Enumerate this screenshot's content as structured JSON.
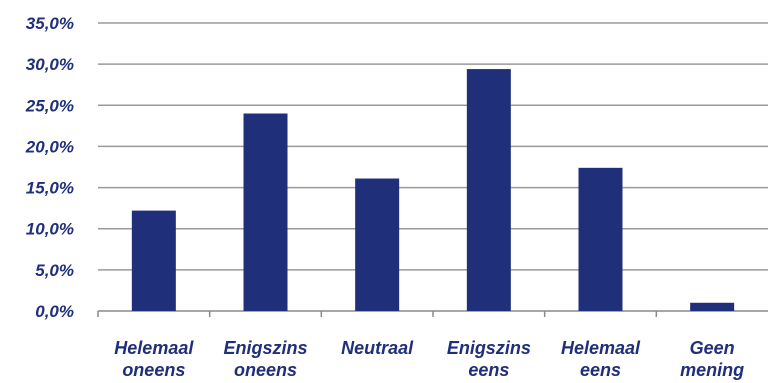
{
  "chart_data": {
    "type": "bar",
    "categories": [
      [
        "Helemaal",
        "oneens"
      ],
      [
        "Enigszins",
        "oneens"
      ],
      [
        "Neutraal"
      ],
      [
        "Enigszins",
        "eens"
      ],
      [
        "Helemaal",
        "eens"
      ],
      [
        "Geen",
        "mening"
      ]
    ],
    "values": [
      12.2,
      24.0,
      16.1,
      29.4,
      17.4,
      1.0
    ],
    "ylim": [
      0,
      35
    ],
    "yticks": [
      0,
      5,
      10,
      15,
      20,
      25,
      30,
      35
    ],
    "ytick_labels": [
      "0,0%",
      "5,0%",
      "10,0%",
      "15,0%",
      "20,0%",
      "25,0%",
      "30,0%",
      "35,0%"
    ],
    "grid": true,
    "legend": "none",
    "title": "",
    "xlabel": "",
    "ylabel": "",
    "colors": {
      "bar": "#1f2f7a",
      "label_text": "#1f2f7a",
      "tick_text": "#1f2f7a",
      "grid": "#9a9a9a",
      "axis": "#8a8a8a"
    }
  }
}
